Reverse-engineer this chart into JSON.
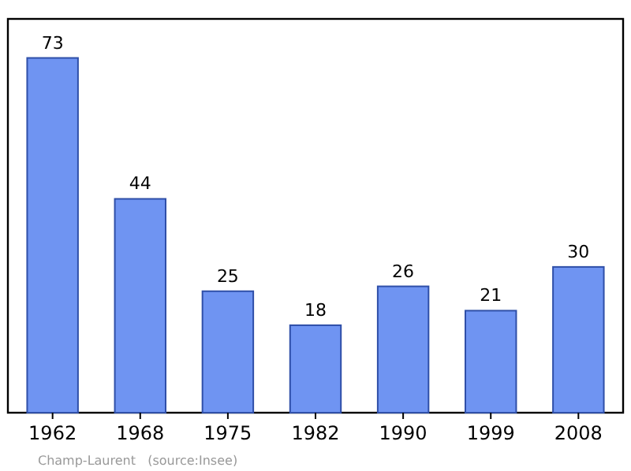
{
  "chart_data": {
    "type": "bar",
    "categories": [
      "1962",
      "1968",
      "1975",
      "1982",
      "1990",
      "1999",
      "2008"
    ],
    "values": [
      73,
      44,
      25,
      18,
      26,
      21,
      30
    ],
    "color": "#6f94f2",
    "data_labels": true,
    "annotations": [
      "Champ-Laurent   (source:Insee)"
    ]
  }
}
